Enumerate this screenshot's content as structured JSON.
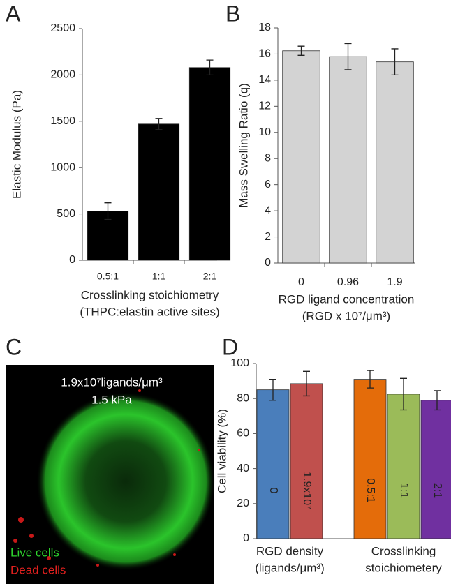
{
  "chart_data": [
    {
      "type": "bar",
      "panel": "A",
      "ylabel": "Elastic Modulus (Pa)",
      "xlabel": [
        "Crosslinking stoichiometry",
        "(THPC:elastin active sites)"
      ],
      "categories": [
        "0.5:1",
        "1:1",
        "2:1"
      ],
      "values": [
        530,
        1470,
        2080
      ],
      "errors": [
        90,
        60,
        80
      ],
      "color": "#000000",
      "ylim": [
        0,
        2500
      ],
      "yticks": [
        0,
        500,
        1000,
        1500,
        2000,
        2500
      ]
    },
    {
      "type": "bar",
      "panel": "B",
      "ylabel": "Mass Swelling Ratio (q)",
      "xlabel": [
        "RGD ligand concentration",
        "(RGD x 10⁷/μm³)"
      ],
      "categories": [
        "0",
        "0.96",
        "1.9"
      ],
      "values": [
        16.25,
        15.8,
        15.4
      ],
      "errors": [
        0.35,
        1.0,
        1.0
      ],
      "color": "#d3d3d3",
      "ylim": [
        0,
        18
      ],
      "yticks": [
        0,
        2,
        4,
        6,
        8,
        10,
        12,
        14,
        16,
        18
      ]
    },
    {
      "type": "grouped-bar",
      "panel": "D",
      "ylabel": "Cell viability (%)",
      "ylim": [
        0,
        100
      ],
      "yticks": [
        0,
        20,
        40,
        60,
        80,
        100
      ],
      "groups": [
        {
          "label": [
            "RGD density",
            "(ligands/μm³)"
          ],
          "categories": [
            "0",
            "1.9x10⁷"
          ],
          "values": [
            85,
            88.5
          ],
          "errors": [
            6,
            7
          ],
          "colors": [
            "#4a7ebb",
            "#c0504d"
          ]
        },
        {
          "label": [
            "Crosslinking",
            "stoichiometery"
          ],
          "categories": [
            "0.5:1",
            "1:1",
            "2:1"
          ],
          "values": [
            91,
            82.5,
            79
          ],
          "errors": [
            5,
            9,
            5.5
          ],
          "colors": [
            "#e46c0a",
            "#9bbb59",
            "#7030a0"
          ]
        }
      ]
    }
  ],
  "image_panel": {
    "panel": "C",
    "labels": [
      "1.9x10⁷ligands/μm³",
      "1.5 kPa"
    ],
    "legend": [
      {
        "name": "Live cells",
        "color": "#2ed52e"
      },
      {
        "name": "Dead cells",
        "color": "#e0201e"
      }
    ]
  }
}
